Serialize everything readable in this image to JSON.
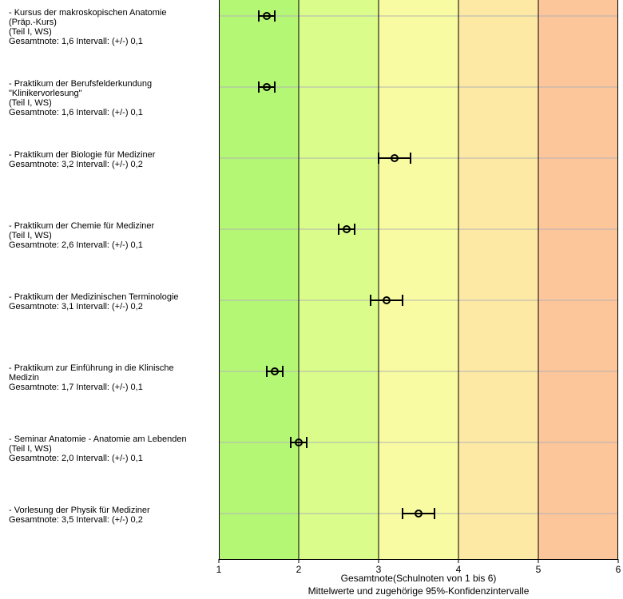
{
  "chart_data": {
    "type": "scatter",
    "xlabel": "Gesamtnote(Schulnoten von 1 bis 6)",
    "subtitle": "Mittelwerte und zugehörige 95%-Konfidenzintervalle",
    "xlim": [
      1,
      6
    ],
    "xticks": [
      "1",
      "2",
      "3",
      "4",
      "5",
      "6"
    ],
    "grid": "vertical",
    "band_colors": [
      "#b4f774",
      "#d9fc8b",
      "#f8fba1",
      "#fde9a3",
      "#fdc59a"
    ],
    "marker_color": "#000000",
    "items": [
      {
        "lines": [
          "- Kursus der makroskopischen Anatomie",
          "(Präp.-Kurs)",
          "(Teil I, WS)",
          "Gesamtnote: 1,6 Intervall: (+/-) 0,1"
        ],
        "mean": 1.6,
        "ci": 0.1
      },
      {
        "lines": [
          "- Praktikum der Berufsfelderkundung",
          "\"Klinikervorlesung\"",
          "(Teil I, WS)",
          "Gesamtnote: 1,6 Intervall: (+/-) 0,1"
        ],
        "mean": 1.6,
        "ci": 0.1
      },
      {
        "lines": [
          "- Praktikum der Biologie für Mediziner",
          "Gesamtnote: 3,2 Intervall: (+/-) 0,2"
        ],
        "mean": 3.2,
        "ci": 0.2
      },
      {
        "lines": [
          "- Praktikum der Chemie für Mediziner",
          "(Teil I, WS)",
          "Gesamtnote: 2,6 Intervall: (+/-) 0,1"
        ],
        "mean": 2.6,
        "ci": 0.1
      },
      {
        "lines": [
          "- Praktikum der Medizinischen Terminologie",
          "Gesamtnote: 3,1 Intervall: (+/-) 0,2"
        ],
        "mean": 3.1,
        "ci": 0.2
      },
      {
        "lines": [
          "- Praktikum zur Einführung in die Klinische",
          "Medizin",
          "Gesamtnote: 1,7 Intervall: (+/-) 0,1"
        ],
        "mean": 1.7,
        "ci": 0.1
      },
      {
        "lines": [
          "- Seminar Anatomie - Anatomie am Lebenden",
          "(Teil I, WS)",
          "Gesamtnote: 2,0 Intervall: (+/-) 0,1"
        ],
        "mean": 2.0,
        "ci": 0.1
      },
      {
        "lines": [
          "- Vorlesung der Physik für Mediziner",
          "Gesamtnote: 3,5 Intervall: (+/-) 0,2"
        ],
        "mean": 3.5,
        "ci": 0.2
      }
    ]
  }
}
